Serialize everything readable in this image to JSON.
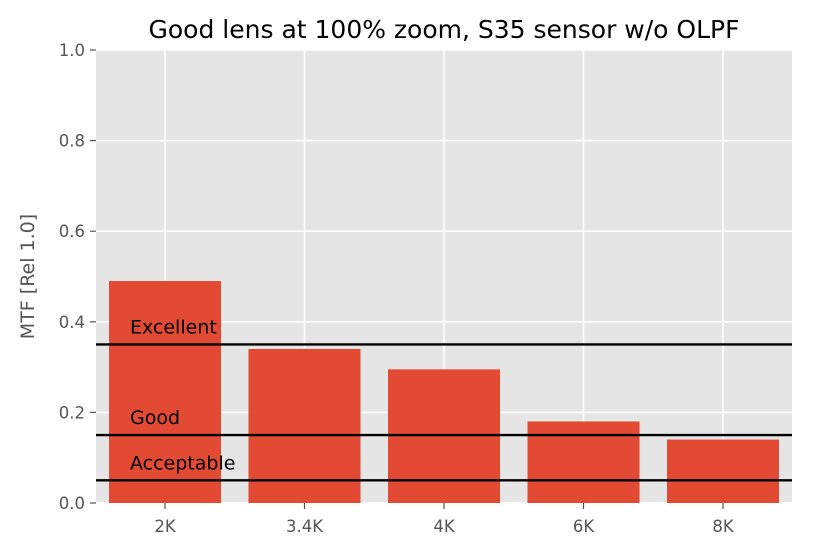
{
  "chart_data": {
    "type": "bar",
    "title": "Good lens at 100% zoom, S35 sensor w/o OLPF",
    "xlabel": "",
    "ylabel": "MTF [Rel 1.0]",
    "categories": [
      "2K",
      "3.4K",
      "4K",
      "6K",
      "8K"
    ],
    "values": [
      0.49,
      0.34,
      0.295,
      0.18,
      0.14
    ],
    "ylim": [
      0,
      1.0
    ],
    "yticks": [
      "0.0",
      "0.2",
      "0.4",
      "0.6",
      "0.8",
      "1.0"
    ],
    "grid": true,
    "bar_color": "#E24A33",
    "background_color": "#E5E5E5",
    "reference_lines": [
      {
        "label": "Excellent",
        "value": 0.35
      },
      {
        "label": "Good",
        "value": 0.15
      },
      {
        "label": "Acceptable",
        "value": 0.05
      }
    ]
  }
}
